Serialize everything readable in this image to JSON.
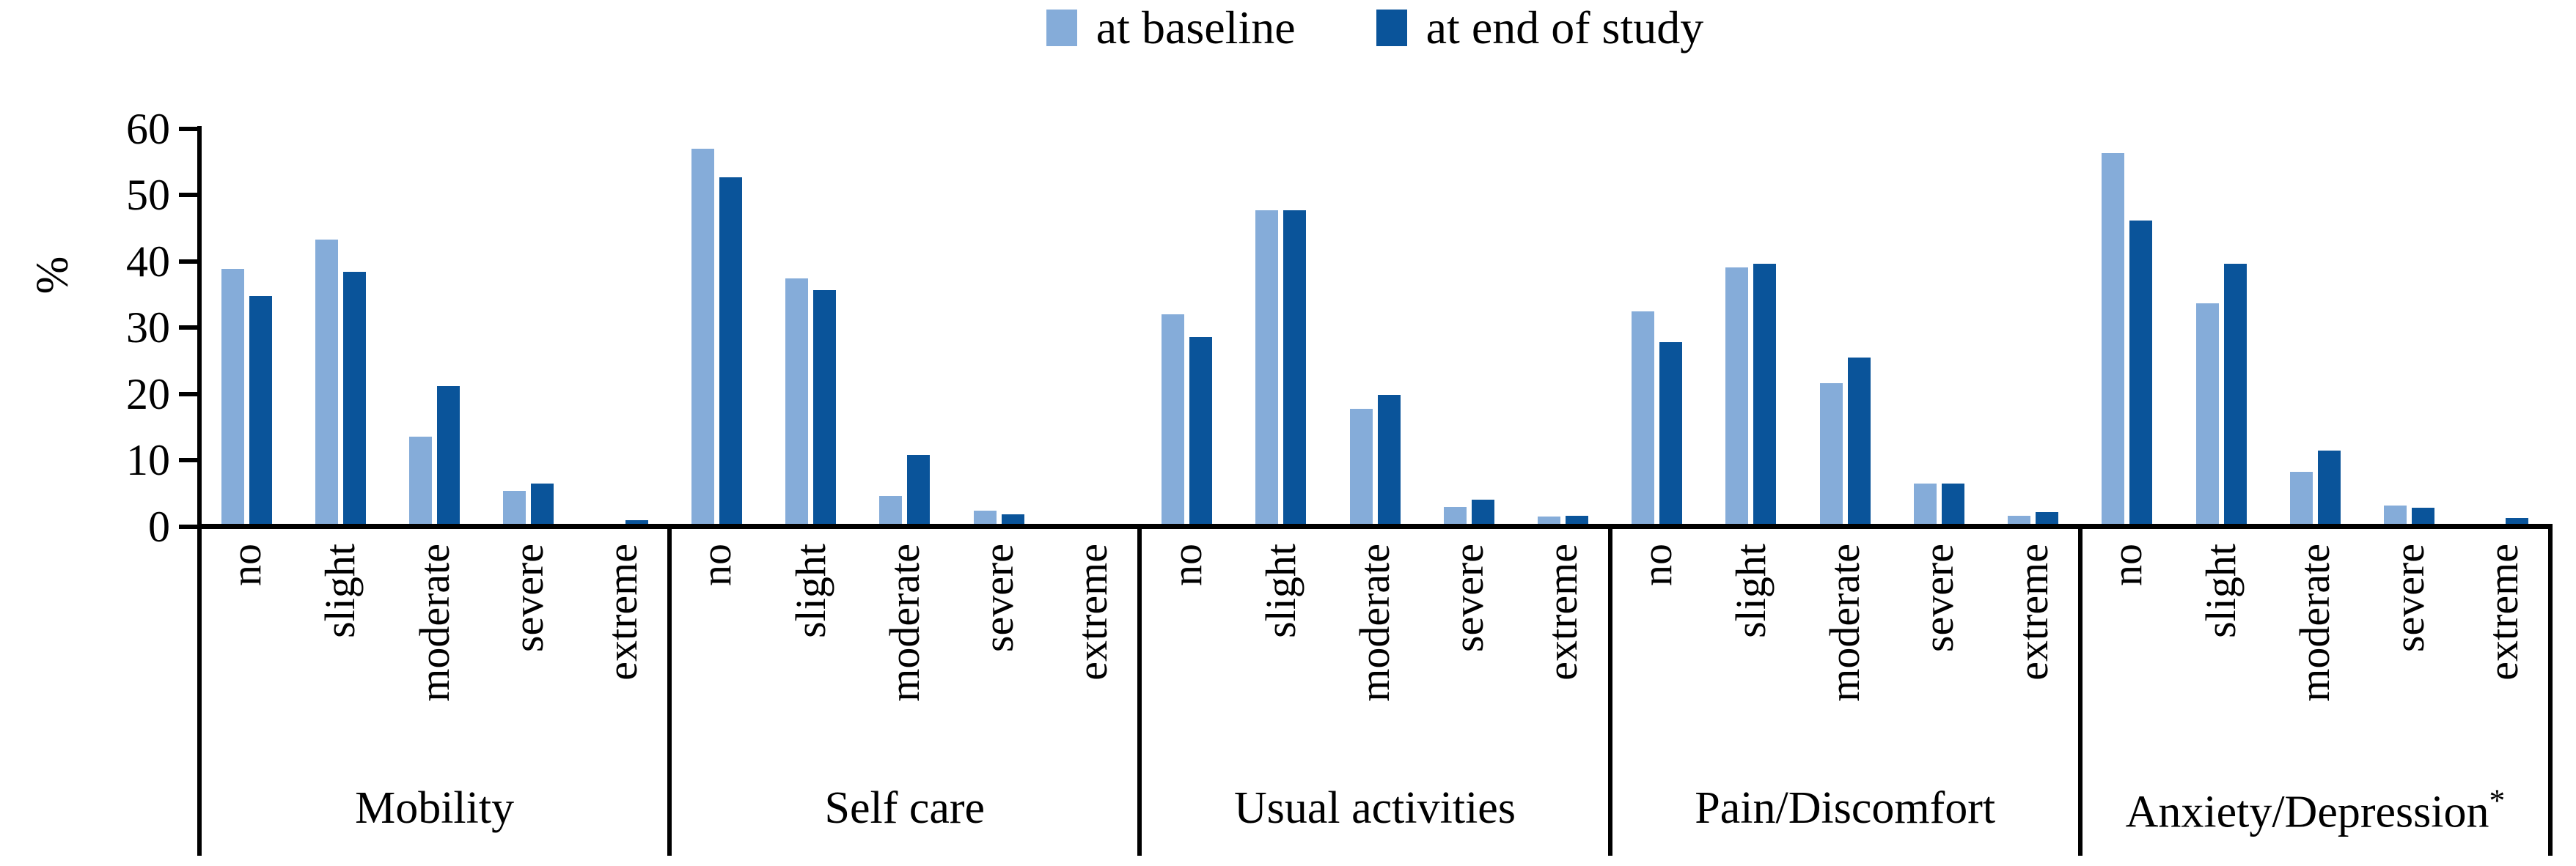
{
  "legend": {
    "items": [
      {
        "id": "at-baseline",
        "label": "at baseline",
        "color": "#85ACD9"
      },
      {
        "id": "at-end-of-study",
        "label": "at end of study",
        "color": "#0A549A"
      }
    ]
  },
  "y_axis": {
    "label": "%",
    "ticks": [
      0,
      10,
      20,
      30,
      40,
      50,
      60
    ]
  },
  "chart_data": {
    "type": "bar",
    "title": "",
    "ylabel": "%",
    "ylim": [
      0,
      60
    ],
    "grid": false,
    "legend_position": "top-center",
    "series_names": [
      "at baseline",
      "at end of study"
    ],
    "colors": {
      "at_baseline": "#85ACD9",
      "at_end_of_study": "#0A549A"
    },
    "level_labels": [
      "no",
      "slight",
      "moderate",
      "severe",
      "extreme"
    ],
    "groups": [
      {
        "key": "mobility",
        "label": "Mobility",
        "note": "",
        "at_baseline": [
          38.4,
          42.9,
          13.2,
          5.0,
          0
        ],
        "at_end_of_study": [
          34.4,
          38.0,
          20.8,
          6.1,
          0.6
        ]
      },
      {
        "key": "self-care",
        "label": "Self care",
        "note": "",
        "at_baseline": [
          56.6,
          37.0,
          4.2,
          2.0,
          0
        ],
        "at_end_of_study": [
          52.3,
          35.2,
          10.4,
          1.4,
          0
        ]
      },
      {
        "key": "usual-activities",
        "label": "Usual activities",
        "note": "",
        "at_baseline": [
          31.6,
          47.3,
          17.3,
          2.5,
          1.1
        ],
        "at_end_of_study": [
          28.2,
          47.3,
          19.5,
          3.6,
          1.2
        ]
      },
      {
        "key": "pain-discomfort",
        "label": "Pain/Discomfort",
        "note": "",
        "at_baseline": [
          32.0,
          38.7,
          21.2,
          6.1,
          1.2
        ],
        "at_end_of_study": [
          27.4,
          39.2,
          25.1,
          6.1,
          1.8
        ]
      },
      {
        "key": "anxiety-depression",
        "label": "Anxiety/Depression",
        "note": "*",
        "at_baseline": [
          55.9,
          33.3,
          7.8,
          2.8,
          0
        ],
        "at_end_of_study": [
          45.8,
          39.2,
          11.0,
          2.4,
          0.9
        ]
      }
    ]
  }
}
